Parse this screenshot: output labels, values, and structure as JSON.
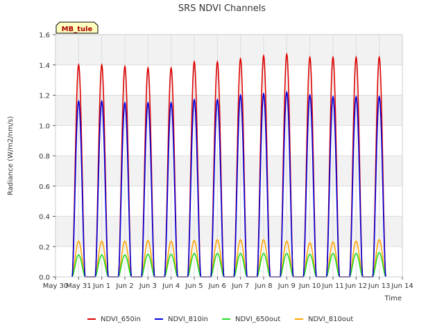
{
  "chart_data": {
    "type": "line",
    "title": "SRS NDVI Channels",
    "xlabel": "Time",
    "ylabel": "Radiance (W/m2/nm/s)",
    "ylim": [
      0,
      1.6
    ],
    "yticks": [
      "0.0",
      "0.2",
      "0.4",
      "0.6",
      "0.8",
      "1.0",
      "1.2",
      "1.4",
      "1.6"
    ],
    "xlim_days": [
      0,
      15
    ],
    "xticks": [
      "May 30",
      "May 31",
      "Jun 1",
      "Jun 2",
      "Jun 3",
      "Jun 4",
      "Jun 5",
      "Jun 6",
      "Jun 7",
      "Jun 8",
      "Jun 9",
      "Jun 10",
      "Jun 11",
      "Jun 12",
      "Jun 13",
      "Jun 14"
    ],
    "grid": true,
    "legend_position": "bottom",
    "annotation": "MB_tule",
    "daily_peak_dates": [
      "May 31",
      "Jun 1",
      "Jun 2",
      "Jun 3",
      "Jun 4",
      "Jun 5",
      "Jun 6",
      "Jun 7",
      "Jun 8",
      "Jun 9",
      "Jun 10",
      "Jun 11",
      "Jun 12",
      "Jun 13"
    ],
    "series": [
      {
        "name": "NDVI_650in",
        "color": "#dd0000",
        "daily_peaks": [
          1.4,
          1.4,
          1.39,
          1.38,
          1.38,
          1.42,
          1.42,
          1.44,
          1.46,
          1.47,
          1.45,
          1.45,
          1.45,
          1.45
        ]
      },
      {
        "name": "NDVI_810in",
        "color": "#0000dd",
        "daily_peaks": [
          1.16,
          1.16,
          1.15,
          1.15,
          1.15,
          1.17,
          1.17,
          1.2,
          1.21,
          1.22,
          1.2,
          1.19,
          1.19,
          1.19
        ]
      },
      {
        "name": "NDVI_650out",
        "color": "#22dd22",
        "daily_peaks": [
          0.145,
          0.145,
          0.145,
          0.15,
          0.15,
          0.155,
          0.155,
          0.155,
          0.155,
          0.155,
          0.15,
          0.155,
          0.155,
          0.16
        ]
      },
      {
        "name": "NDVI_810out",
        "color": "#ffa500",
        "daily_peaks": [
          0.235,
          0.235,
          0.235,
          0.24,
          0.235,
          0.24,
          0.245,
          0.245,
          0.245,
          0.235,
          0.225,
          0.23,
          0.235,
          0.245
        ]
      }
    ]
  }
}
